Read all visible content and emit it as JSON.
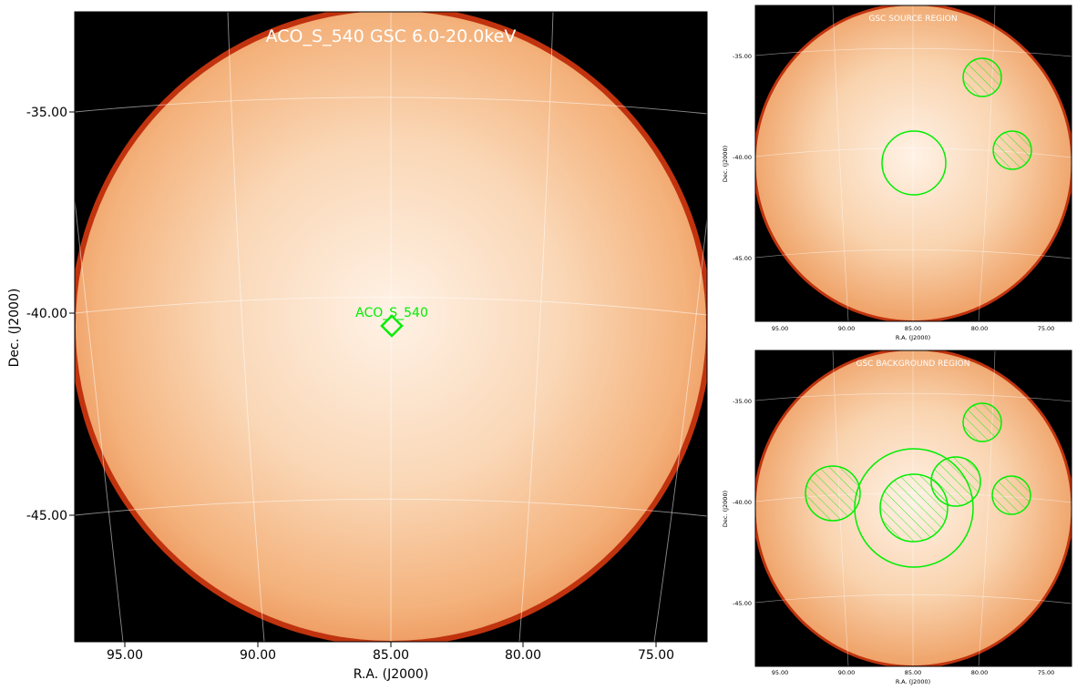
{
  "main": {
    "title": "ACO_S_540 GSC 6.0-20.0keV",
    "marker_label": "ACO_S_540",
    "xlabel": "R.A. (J2000)",
    "ylabel": "Dec. (J2000)",
    "ra_ticks": [
      "95.00",
      "90.00",
      "85.00",
      "80.00",
      "75.00"
    ],
    "dec_ticks": [
      "-35.00",
      "-40.00",
      "-45.00"
    ]
  },
  "source": {
    "title": "GSC SOURCE REGION",
    "xlabel": "R.A. (J2000)",
    "ylabel": "Dec. (J2000)",
    "ra_ticks": [
      "95.00",
      "90.00",
      "85.00",
      "80.00",
      "75.00"
    ],
    "dec_ticks": [
      "-35.00",
      "-40.00",
      "-45.00"
    ]
  },
  "background": {
    "title": "GSC BACKGROUND REGION",
    "xlabel": "R.A. (J2000)",
    "ylabel": "Dec. (J2000)",
    "ra_ticks": [
      "95.00",
      "90.00",
      "85.00",
      "80.00",
      "75.00"
    ],
    "dec_ticks": [
      "-35.00",
      "-40.00",
      "-45.00"
    ]
  },
  "colors": {
    "frame_background": "#000000",
    "disk_center": "#fff3e8",
    "disk_mid": "#f8c79a",
    "disk_edge": "#ef9a5a",
    "rim": "#c0330e",
    "region": "#00ee00",
    "grid": "#ffffff"
  }
}
